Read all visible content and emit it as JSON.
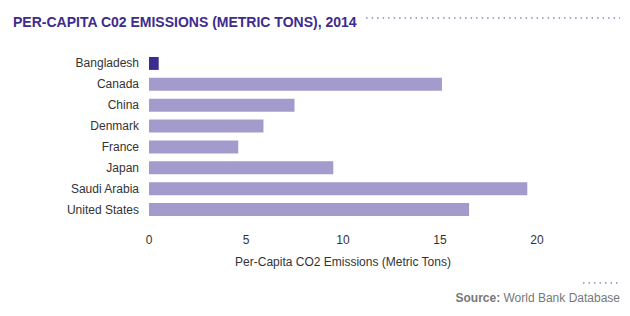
{
  "chart_data": {
    "type": "bar",
    "orientation": "horizontal",
    "title": "PER-CAPITA C02 EMISSIONS (METRIC TONS), 2014",
    "x_label": "Per-Capita CO2 Emissions (Metric Tons)",
    "source": "Source: World Bank Database",
    "categories": [
      "Bangladesh",
      "Canada",
      "China",
      "Denmark",
      "France",
      "Japan",
      "Saudi Arabia",
      "United States"
    ],
    "values": [
      0.5,
      15.1,
      7.5,
      5.9,
      4.6,
      9.5,
      19.5,
      16.5
    ],
    "colors": [
      "#3d2b8e",
      "#a39bcc",
      "#a39bcc",
      "#a39bcc",
      "#a39bcc",
      "#a39bcc",
      "#a39bcc",
      "#a39bcc"
    ],
    "xlim": [
      0,
      20
    ],
    "xticks": [
      0,
      5,
      10,
      15,
      20
    ],
    "grid": false
  }
}
